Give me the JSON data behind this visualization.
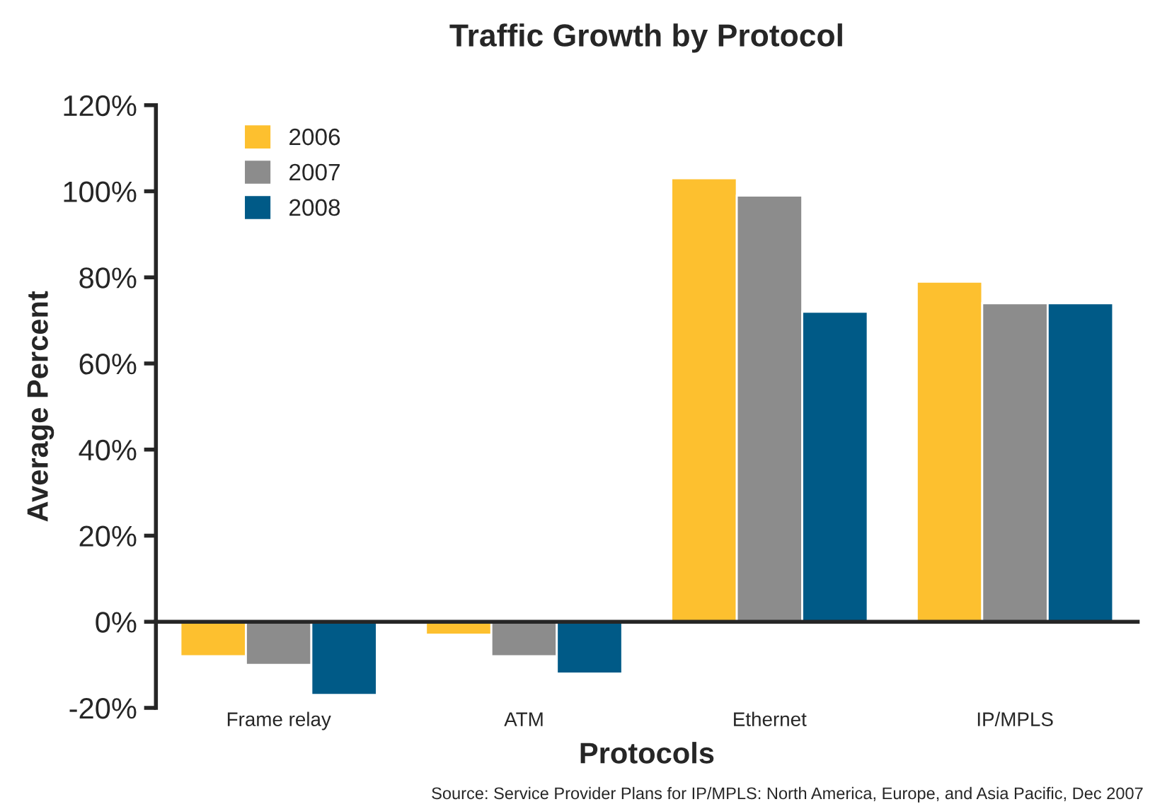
{
  "chart_data": {
    "type": "bar",
    "title": "Traffic Growth by Protocol",
    "xlabel": "Protocols",
    "ylabel": "Average Percent",
    "categories": [
      "Frame relay",
      "ATM",
      "Ethernet",
      "IP/MPLS"
    ],
    "series": [
      {
        "name": "2006",
        "color": "#fdc02f",
        "values": [
          -8,
          -3,
          103,
          79
        ]
      },
      {
        "name": "2007",
        "color": "#8c8c8c",
        "values": [
          -10,
          -8,
          99,
          74
        ]
      },
      {
        "name": "2008",
        "color": "#005a87",
        "values": [
          -17,
          -12,
          72,
          74
        ]
      }
    ],
    "ylim": [
      -20,
      120
    ],
    "yticks": [
      {
        "value": -20,
        "label": "-20%"
      },
      {
        "value": 0,
        "label": "0%"
      },
      {
        "value": 20,
        "label": "20%"
      },
      {
        "value": 40,
        "label": "40%"
      },
      {
        "value": 60,
        "label": "60%"
      },
      {
        "value": 80,
        "label": "80%"
      },
      {
        "value": 100,
        "label": "100%"
      },
      {
        "value": 120,
        "label": "120%"
      }
    ],
    "legend": "top left",
    "annotations": [
      "Source: Service Provider Plans for IP/MPLS: North America, Europe, and Asia Pacific, Dec 2007"
    ]
  }
}
